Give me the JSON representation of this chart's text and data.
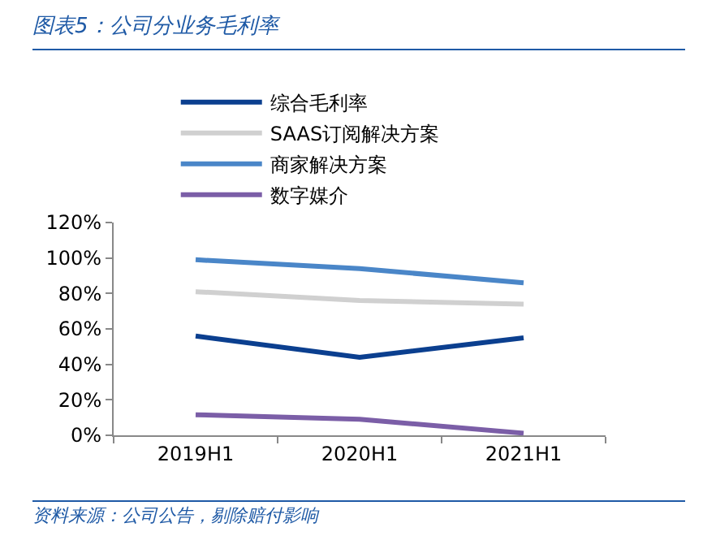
{
  "chart_data": {
    "type": "line",
    "title": "图表5：公司分业务毛利率",
    "categories": [
      "2019H1",
      "2020H1",
      "2021H1"
    ],
    "series": [
      {
        "name": "综合毛利率",
        "color": "#0b3f8f",
        "values": [
          56,
          44,
          55
        ]
      },
      {
        "name": "SAAS订阅解决方案",
        "color": "#d0d0d0",
        "values": [
          81,
          76,
          74
        ]
      },
      {
        "name": "商家解决方案",
        "color": "#4a86c8",
        "values": [
          99,
          94,
          86
        ]
      },
      {
        "name": "数字媒介",
        "color": "#7b5ea7",
        "values": [
          11.6,
          9,
          1.2
        ]
      }
    ],
    "ylim": [
      0,
      120
    ],
    "yticks": [
      {
        "value": 0,
        "label": "0%"
      },
      {
        "value": 20,
        "label": "20%"
      },
      {
        "value": 40,
        "label": "40%"
      },
      {
        "value": 60,
        "label": "60%"
      },
      {
        "value": 80,
        "label": "80%"
      },
      {
        "value": 100,
        "label": "100%"
      },
      {
        "value": 120,
        "label": "120%"
      }
    ],
    "grid": false,
    "legend": "top",
    "marker": "none",
    "line_style": "solid",
    "annotations": [
      "资料来源：公司公告，剔除赔付影响"
    ]
  }
}
